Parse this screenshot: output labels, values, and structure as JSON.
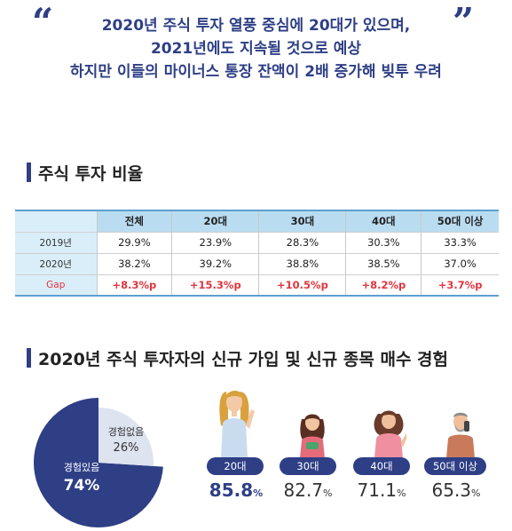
{
  "headline": {
    "line1": "2020년 주식 투자 열풍 중심에 20대가 있으며,",
    "line2": "2021년에도 지속될 것으로 예상",
    "line3": "하지만 이들의 마이너스 통장 잔액이 2배 증가해 빚투 우려"
  },
  "section1": {
    "title": "주식 투자 비율"
  },
  "table": {
    "headers": [
      "",
      "전체",
      "20대",
      "30대",
      "40대",
      "50대 이상"
    ],
    "rows": [
      {
        "label": "2019년",
        "cells": [
          "29.9%",
          "23.9%",
          "28.3%",
          "30.3%",
          "33.3%"
        ]
      },
      {
        "label": "2020년",
        "cells": [
          "38.2%",
          "39.2%",
          "38.8%",
          "38.5%",
          "37.0%"
        ]
      },
      {
        "label": "Gap",
        "cells": [
          "+8.3%p",
          "+15.3%p",
          "+10.5%p",
          "+8.2%p",
          "+3.7%p"
        ]
      }
    ]
  },
  "section2": {
    "title": "2020년 주식 투자자의 신규 가입 및 신규 종목 매수 경험"
  },
  "pie": {
    "slices": [
      {
        "label": "경험있음",
        "value_label": "74%",
        "value": 74,
        "color": "#2e3f86"
      },
      {
        "label": "경험없음",
        "value_label": "26%",
        "value": 26,
        "color": "#dde3ef"
      }
    ]
  },
  "ages": [
    {
      "label": "20대",
      "value": "85.8",
      "unit": "%"
    },
    {
      "label": "30대",
      "value": "82.7",
      "unit": "%"
    },
    {
      "label": "40대",
      "value": "71.1",
      "unit": "%"
    },
    {
      "label": "50대 이상",
      "value": "65.3",
      "unit": "%"
    }
  ],
  "colors": {
    "navy": "#2e3f86",
    "gap_red": "#e2343d",
    "header_blue": "#b9dcf1",
    "pie_light": "#dde3ef"
  },
  "icons": [
    "quote-open-icon",
    "quote-close-icon",
    "woman-20s-icon",
    "woman-30s-icon",
    "woman-40s-icon",
    "man-50s-icon"
  ]
}
